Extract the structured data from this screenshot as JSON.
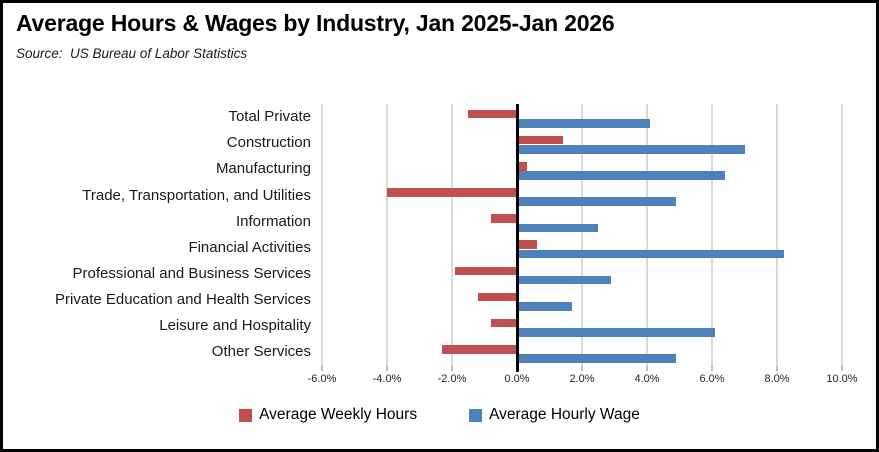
{
  "header": {
    "title": "Average Hours & Wages by Industry, Jan 2025-Jan 2026",
    "source": "Source:  US Bureau of Labor Statistics"
  },
  "colors": {
    "weekly_hours_red": "#C0504D",
    "hourly_wage_blue": "#4F81BD",
    "gridline": "#D9D9D9",
    "zero_axis": "#000000"
  },
  "legend": [
    {
      "label": "Average Weekly Hours",
      "color": "#C0504D"
    },
    {
      "label": "Average Hourly Wage",
      "color": "#4F81BD"
    }
  ],
  "chart_data": {
    "type": "bar",
    "orientation": "horizontal",
    "title": "Average Hours & Wages by Industry, Jan 2025-Jan 2026",
    "source": "Source:  US Bureau of Labor Statistics",
    "categories": [
      "Total Private",
      "Construction",
      "Manufacturing",
      "Trade, Transportation, and Utilities",
      "Information",
      "Financial Activities",
      "Professional and Business Services",
      "Private Education and Health Services",
      "Leisure and Hospitality",
      "Other Services"
    ],
    "series": [
      {
        "name": "Average Weekly Hours",
        "color": "#C0504D",
        "values": [
          -1.5,
          1.4,
          0.3,
          -4.0,
          -0.8,
          0.6,
          -1.9,
          -1.2,
          -0.8,
          -2.3
        ]
      },
      {
        "name": "Average Hourly Wage",
        "color": "#4F81BD",
        "values": [
          4.1,
          7.0,
          6.4,
          4.9,
          2.5,
          8.2,
          2.9,
          1.7,
          6.1,
          4.9
        ]
      }
    ],
    "xlim": [
      -6,
      10
    ],
    "x_ticks": [
      -6,
      -4,
      -2,
      0,
      2,
      4,
      6,
      8,
      10
    ],
    "x_tick_labels": [
      "-6.0%",
      "-4.0%",
      "-2.0%",
      "0.0%",
      "2.0%",
      "4.0%",
      "6.0%",
      "8.0%",
      "10.0%"
    ],
    "value_unit": "percent",
    "grid": true,
    "legend_position": "bottom"
  }
}
